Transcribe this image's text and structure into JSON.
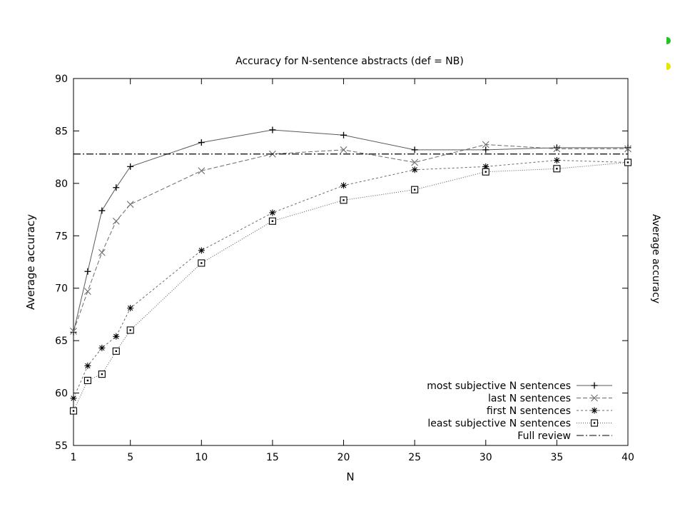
{
  "chart_data": {
    "type": "line",
    "title": "Accuracy for N-sentence abstracts (def =  NB)",
    "xlabel": "N",
    "ylabel": "Average accuracy",
    "xlim": [
      1,
      40
    ],
    "ylim": [
      55,
      90
    ],
    "x_ticks": [
      "1",
      "5",
      "10",
      "15",
      "20",
      "25",
      "30",
      "35",
      "40"
    ],
    "y_ticks": [
      "55",
      "60",
      "65",
      "70",
      "75",
      "80",
      "85",
      "90"
    ],
    "grid": false,
    "legend_position": "bottom-right",
    "series": [
      {
        "name": "most subjective N sentences",
        "line_style": "solid",
        "marker": "plus",
        "x": [
          1,
          2,
          3,
          4,
          5,
          10,
          15,
          20,
          25,
          30,
          35,
          40
        ],
        "y": [
          65.8,
          71.6,
          77.4,
          79.6,
          81.6,
          83.9,
          85.1,
          84.6,
          83.2,
          83.2,
          83.4,
          83.4
        ]
      },
      {
        "name": "last N sentences",
        "line_style": "dashed",
        "marker": "cross",
        "x": [
          1,
          2,
          3,
          4,
          5,
          10,
          15,
          20,
          25,
          30,
          35,
          40
        ],
        "y": [
          65.9,
          69.7,
          73.4,
          76.4,
          78.0,
          81.2,
          82.8,
          83.2,
          82.0,
          83.7,
          83.3,
          83.3
        ]
      },
      {
        "name": "first N sentences",
        "line_style": "short-dashed",
        "marker": "star",
        "x": [
          1,
          2,
          3,
          4,
          5,
          10,
          15,
          20,
          25,
          30,
          35,
          40
        ],
        "y": [
          59.5,
          62.6,
          64.3,
          65.4,
          68.1,
          73.6,
          77.2,
          79.8,
          81.3,
          81.6,
          82.2,
          82.0
        ]
      },
      {
        "name": "least subjective N sentences",
        "line_style": "dotted",
        "marker": "square",
        "x": [
          1,
          2,
          3,
          4,
          5,
          10,
          15,
          20,
          25,
          30,
          35,
          40
        ],
        "y": [
          58.3,
          61.2,
          61.8,
          64.0,
          66.0,
          72.4,
          76.4,
          78.4,
          79.4,
          81.1,
          81.4,
          82.0
        ]
      },
      {
        "name": "Full review",
        "line_style": "dash-dot",
        "marker": "none",
        "constant": 82.8
      }
    ]
  },
  "edge": {
    "label": "Average accuracy",
    "marker_colors": [
      "#22c322",
      "#e6e600"
    ]
  }
}
